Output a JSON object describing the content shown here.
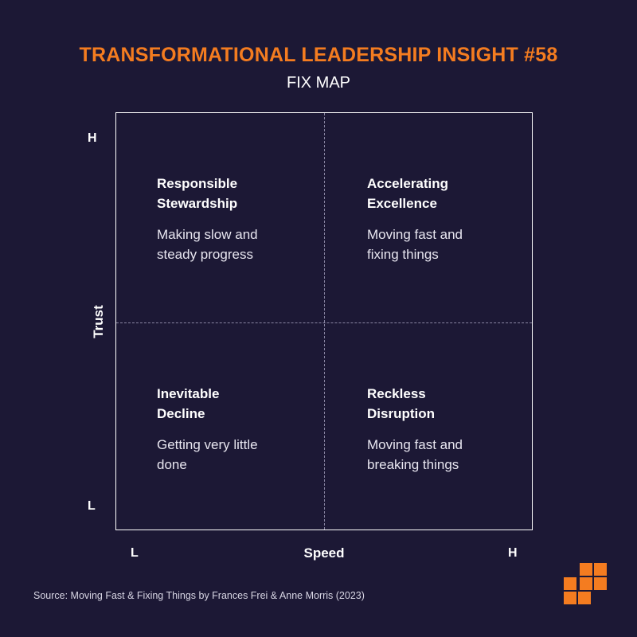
{
  "header": {
    "title": "TRANSFORMATIONAL LEADERSHIP INSIGHT #58",
    "subtitle": "FIX MAP"
  },
  "axes": {
    "y_label": "Trust",
    "y_high": "H",
    "y_low": "L",
    "x_label": "Speed",
    "x_low": "L",
    "x_high": "H"
  },
  "quadrants": {
    "top_left": {
      "title_line1": "Responsible",
      "title_line2": "Stewardship",
      "desc_line1": "Making slow and",
      "desc_line2": "steady progress"
    },
    "top_right": {
      "title_line1": "Accelerating",
      "title_line2": "Excellence",
      "desc_line1": "Moving fast and",
      "desc_line2": "fixing things"
    },
    "bottom_left": {
      "title_line1": "Inevitable",
      "title_line2": "Decline",
      "desc_line1": "Getting very little",
      "desc_line2": "done"
    },
    "bottom_right": {
      "title_line1": "Reckless",
      "title_line2": "Disruption",
      "desc_line1": "Moving fast and",
      "desc_line2": "breaking things"
    }
  },
  "footer": {
    "source": "Source: Moving Fast & Fixing Things by Frances Frei & Anne Morris (2023)"
  },
  "colors": {
    "background": "#1c1835",
    "accent": "#f47c20",
    "text": "#ffffff"
  },
  "icons": {
    "logo": "orange-blocks-logo-icon"
  }
}
